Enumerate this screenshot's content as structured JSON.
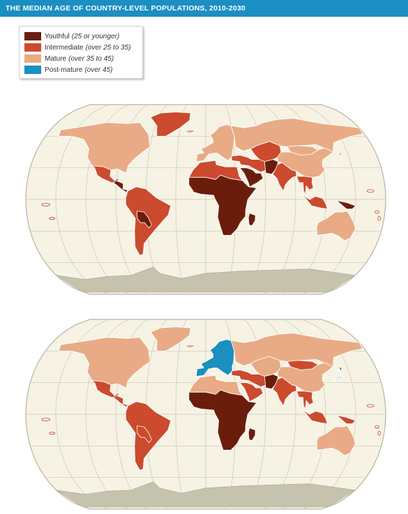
{
  "title": "THE MEDIAN AGE OF COUNTRY-LEVEL POPULATIONS, 2010-2030",
  "legend": [
    {
      "label": "Youthful",
      "range": "(25 or younger)",
      "color": "#6b1d0c"
    },
    {
      "label": "Intermediate",
      "range": "(over 25 to 35)",
      "color": "#cc4a2e"
    },
    {
      "label": "Mature",
      "range": "(over 35 to 45)",
      "color": "#e8ab86"
    },
    {
      "label": "Post-mature",
      "range": "(over 45)",
      "color": "#1a8fc0"
    }
  ],
  "colors": {
    "ocean": "#f6f3e5",
    "graticule": "#c9c6b5",
    "antarctica": "#c5c3ad",
    "border": "#ffffff"
  },
  "maps": [
    {
      "regions": {
        "north_america": "mature",
        "mexico": "intermediate",
        "central_america": "youthful",
        "south_america": "intermediate",
        "bolivia_paraguay": "youthful",
        "greenland": "intermediate",
        "europe": "mature",
        "russia": "mature",
        "north_africa": "intermediate",
        "sub_saharan_africa": "youthful",
        "middle_east": "intermediate",
        "arabia": "youthful",
        "afghanistan_pakistan": "youthful",
        "central_asia": "intermediate",
        "india": "intermediate",
        "mongolia": "mature",
        "china": "mature",
        "japan": "mature",
        "southeast_asia": "intermediate",
        "indonesia": "intermediate",
        "new_guinea": "youthful",
        "australia": "mature",
        "madagascar": "youthful",
        "iceland": "mature"
      }
    },
    {
      "regions": {
        "north_america": "mature",
        "mexico": "intermediate",
        "central_america": "intermediate",
        "south_america": "intermediate",
        "bolivia_paraguay": "intermediate",
        "greenland": "mature",
        "europe": "post",
        "russia": "mature",
        "north_africa": "mature",
        "sub_saharan_africa": "youthful",
        "middle_east": "intermediate",
        "arabia": "intermediate",
        "afghanistan_pakistan": "youthful",
        "central_asia": "mature",
        "india": "intermediate",
        "mongolia": "intermediate",
        "china": "mature",
        "japan": "post",
        "southeast_asia": "intermediate",
        "indonesia": "intermediate",
        "new_guinea": "intermediate",
        "australia": "mature",
        "madagascar": "youthful",
        "iceland": "mature"
      }
    }
  ]
}
